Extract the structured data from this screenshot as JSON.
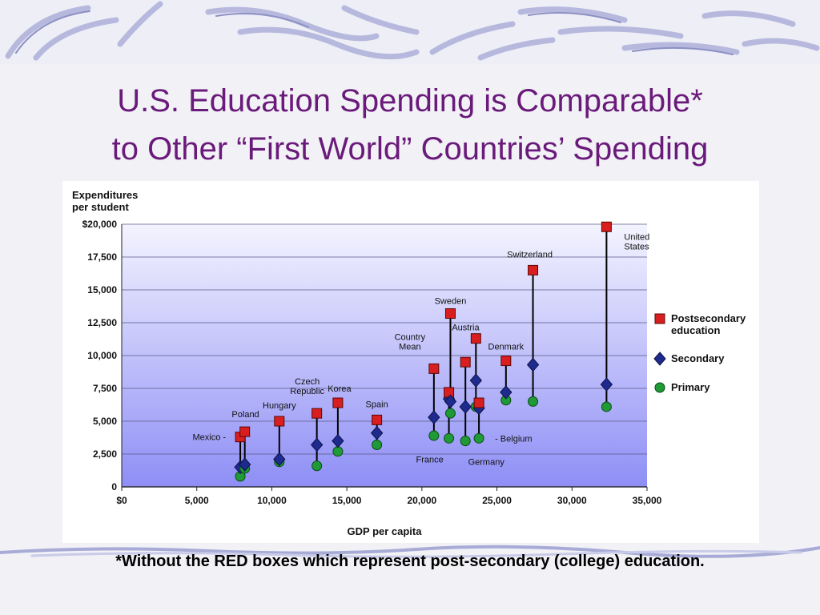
{
  "slide": {
    "title_line1": "U.S. Education Spending is Comparable*",
    "title_line2": "to Other “First World” Countries’ Spending",
    "footnote": "*Without the RED boxes which represent post-secondary (college) education."
  },
  "colors": {
    "title": "#6a1a7a",
    "postsecondary": "#d81e1e",
    "secondary": "#1f2a8f",
    "primary": "#1f9a36",
    "plot_bg_top": "#f4f4ff",
    "plot_bg_bottom": "#8e8ef6"
  },
  "chart_data": {
    "type": "scatter",
    "ylabel_line1": "Expenditures",
    "ylabel_line2": "per student",
    "xlabel": "GDP per capita",
    "xlim": [
      0,
      35000
    ],
    "ylim": [
      0,
      20000
    ],
    "x_ticks": [
      0,
      5000,
      10000,
      15000,
      20000,
      25000,
      30000,
      35000
    ],
    "x_tick_labels": [
      "$0",
      "5,000",
      "10,000",
      "15,000",
      "20,000",
      "25,000",
      "30,000",
      "35,000"
    ],
    "y_ticks": [
      0,
      2500,
      5000,
      7500,
      10000,
      12500,
      15000,
      17500,
      20000
    ],
    "y_tick_labels": [
      "0",
      "2,500",
      "5,000",
      "7,500",
      "10,000",
      "12,500",
      "15,000",
      "17,500",
      "$20,000"
    ],
    "grid": true,
    "legend_position": "right",
    "legend": [
      {
        "name_line1": "Postsecondary",
        "name_line2": "education",
        "marker": "square"
      },
      {
        "name_line1": "Secondary",
        "name_line2": "",
        "marker": "diamond"
      },
      {
        "name_line1": "Primary",
        "name_line2": "",
        "marker": "circle"
      }
    ],
    "points": [
      {
        "label": "Mexico",
        "x": 7900,
        "postsecondary": 3800,
        "secondary": 1500,
        "primary": 800
      },
      {
        "label": "Poland",
        "x": 8200,
        "postsecondary": 4200,
        "secondary": 1700,
        "primary": 1400
      },
      {
        "label": "Hungary",
        "x": 10500,
        "postsecondary": 5000,
        "secondary": 2100,
        "primary": 1900
      },
      {
        "label": "Czech Republic",
        "x": 13000,
        "postsecondary": 5600,
        "secondary": 3200,
        "primary": 1600
      },
      {
        "label": "Korea",
        "x": 14400,
        "postsecondary": 6400,
        "secondary": 3500,
        "primary": 2700
      },
      {
        "label": "Spain",
        "x": 17000,
        "postsecondary": 5100,
        "secondary": 4100,
        "primary": 3200
      },
      {
        "label": "Country Mean",
        "x": 20800,
        "postsecondary": 9000,
        "secondary": 5300,
        "primary": 3900
      },
      {
        "label": "France",
        "x": 21800,
        "postsecondary": 7200,
        "secondary": 6700,
        "primary": 3700
      },
      {
        "label": "Sweden",
        "x": 21900,
        "postsecondary": 13200,
        "secondary": 6500,
        "primary": 5600
      },
      {
        "label": "Germany",
        "x": 22900,
        "postsecondary": 9500,
        "secondary": 6100,
        "primary": 3500
      },
      {
        "label": "Austria",
        "x": 23600,
        "postsecondary": 11300,
        "secondary": 8100,
        "primary": 6100
      },
      {
        "label": "Belgium",
        "x": 23800,
        "postsecondary": 6400,
        "secondary": 6000,
        "primary": 3700
      },
      {
        "label": "Denmark",
        "x": 25600,
        "postsecondary": 9600,
        "secondary": 7200,
        "primary": 6600
      },
      {
        "label": "Switzerland",
        "x": 27400,
        "postsecondary": 16500,
        "secondary": 9300,
        "primary": 6500
      },
      {
        "label": "United States",
        "x": 32300,
        "postsecondary": 19800,
        "secondary": 7800,
        "primary": 6100
      }
    ]
  }
}
